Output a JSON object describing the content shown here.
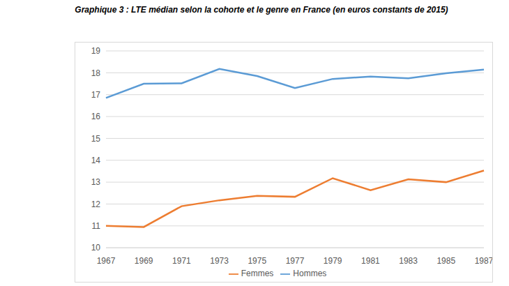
{
  "chart_data": {
    "type": "line",
    "title": "Graphique 3 : LTE médian selon la cohorte et le genre en France (en euros constants de 2015)",
    "categories": [
      "1967",
      "1969",
      "1971",
      "1973",
      "1975",
      "1977",
      "1979",
      "1981",
      "1983",
      "1985",
      "1987"
    ],
    "series": [
      {
        "name": "Hommes",
        "color": "#5b9bd5",
        "values": [
          16.85,
          17.5,
          17.52,
          18.18,
          17.85,
          17.3,
          17.72,
          17.83,
          17.75,
          17.98,
          18.15
        ]
      },
      {
        "name": "Femmes",
        "color": "#ed7d31",
        "values": [
          11.0,
          10.95,
          11.9,
          12.17,
          12.37,
          12.33,
          13.18,
          12.63,
          13.13,
          13.0,
          13.53
        ]
      }
    ],
    "ylim": [
      10,
      19
    ],
    "yticks": [
      10,
      11,
      12,
      13,
      14,
      15,
      16,
      17,
      18,
      19
    ],
    "grid": true,
    "legend": "bottom"
  }
}
